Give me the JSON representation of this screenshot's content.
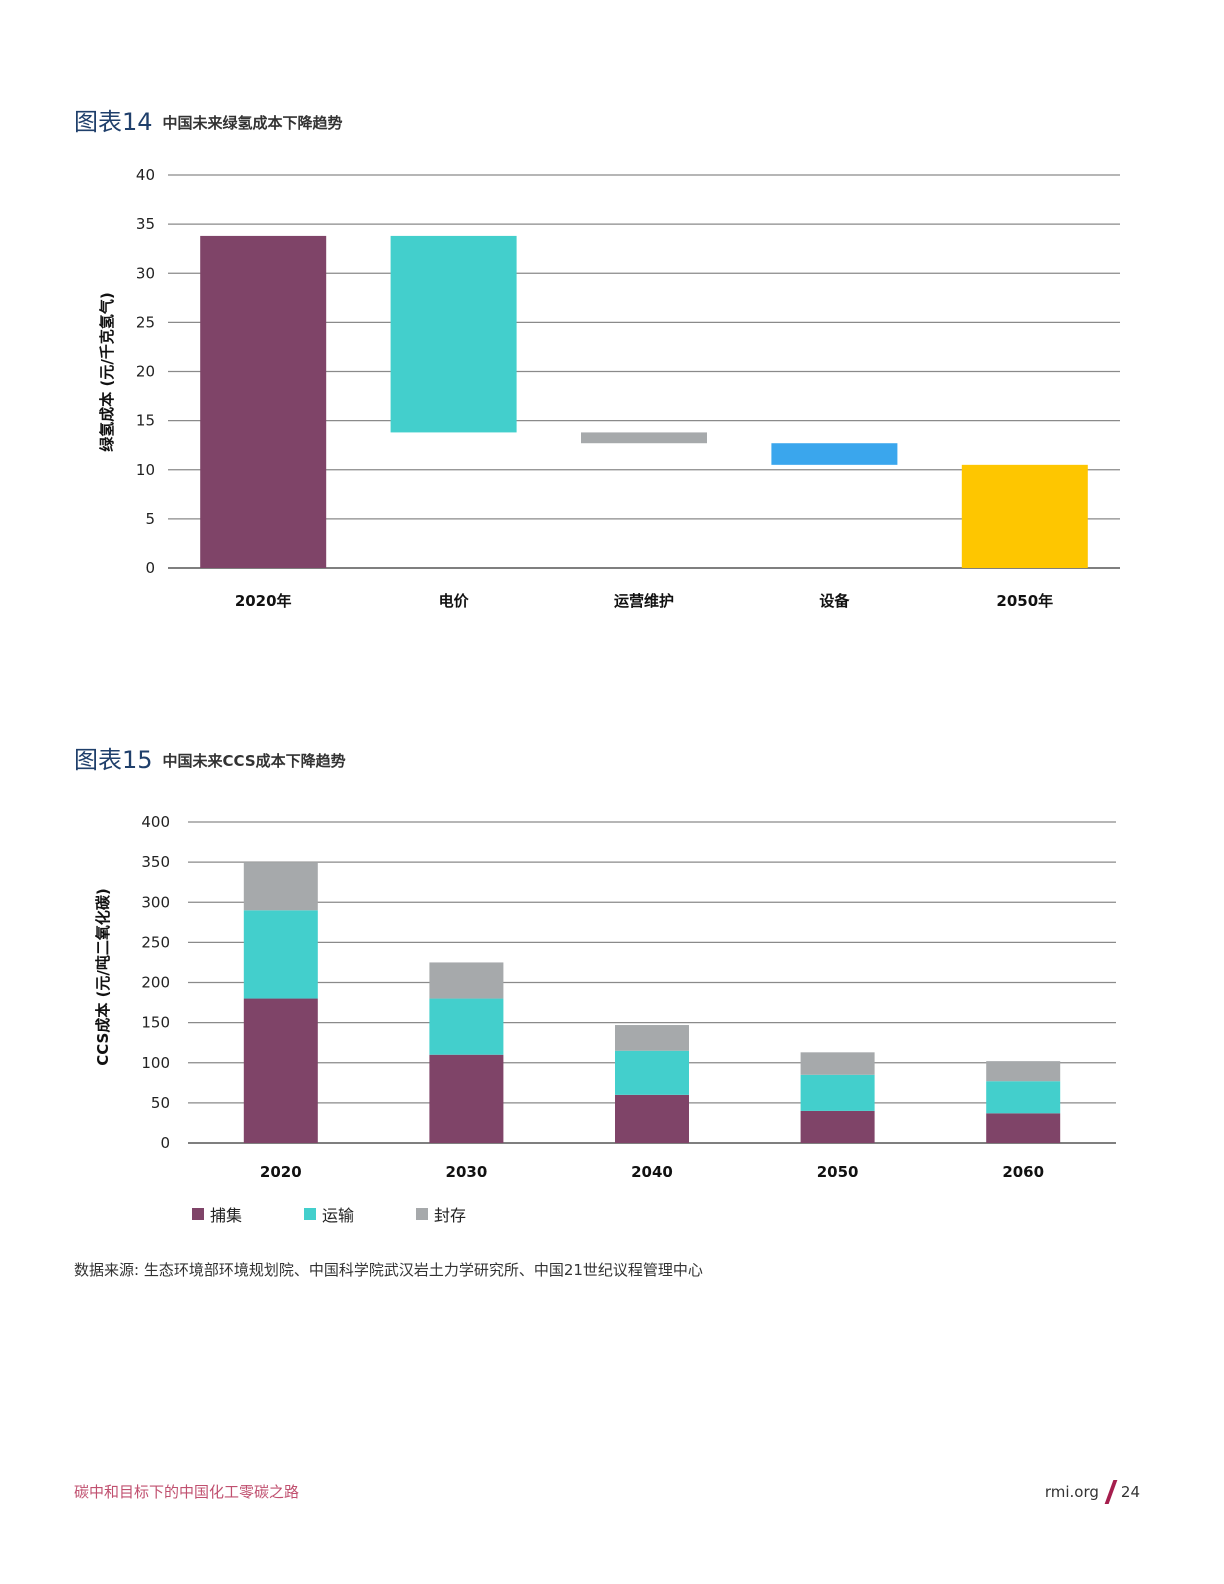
{
  "figure14": {
    "label": "图表14",
    "title": "中国未来绿氢成本下降趋势",
    "ylabel": "绿氢成本 (元/千克氢气)"
  },
  "figure15": {
    "label": "图表15",
    "title": "中国未来CCS成本下降趋势",
    "ylabel": "CCS成本 (元/吨二氧化碳)"
  },
  "chart_data": [
    {
      "type": "bar",
      "subtype": "waterfall",
      "ylim": [
        0,
        40
      ],
      "yticks": [
        0,
        5,
        10,
        15,
        20,
        25,
        30,
        35,
        40
      ],
      "grid": true,
      "categories": [
        "2020年",
        "电价",
        "运营维护",
        "设备",
        "2050年"
      ],
      "bars": [
        {
          "category": "2020年",
          "start": 0,
          "end": 33.8,
          "color": "#7f4468"
        },
        {
          "category": "电价",
          "start": 13.8,
          "end": 33.8,
          "color": "#43cfcc"
        },
        {
          "category": "运营维护",
          "start": 12.7,
          "end": 13.8,
          "color": "#a6a9ab"
        },
        {
          "category": "设备",
          "start": 10.5,
          "end": 12.7,
          "color": "#3aa6ed"
        },
        {
          "category": "2050年",
          "start": 0,
          "end": 10.5,
          "color": "#fec600"
        }
      ]
    },
    {
      "type": "bar",
      "subtype": "stacked",
      "ylim": [
        0,
        400
      ],
      "yticks": [
        0,
        50,
        100,
        150,
        200,
        250,
        300,
        350,
        400
      ],
      "grid": true,
      "legend_position": "bottom-left",
      "categories": [
        "2020",
        "2030",
        "2040",
        "2050",
        "2060"
      ],
      "series": [
        {
          "name": "捕集",
          "color": "#7f4468",
          "values": [
            180,
            110,
            60,
            40,
            37
          ]
        },
        {
          "name": "运输",
          "color": "#43cfcc",
          "values": [
            110,
            70,
            55,
            45,
            40
          ]
        },
        {
          "name": "封存",
          "color": "#a6a9ab",
          "values": [
            60,
            45,
            32,
            28,
            25
          ]
        }
      ]
    }
  ],
  "source_text": "数据来源: 生态环境部环境规划院、中国科学院武汉岩土力学研究所、中国21世纪议程管理中心",
  "footer": {
    "left": "碳中和目标下的中国化工零碳之路",
    "site": "rmi.org",
    "page": "24"
  }
}
